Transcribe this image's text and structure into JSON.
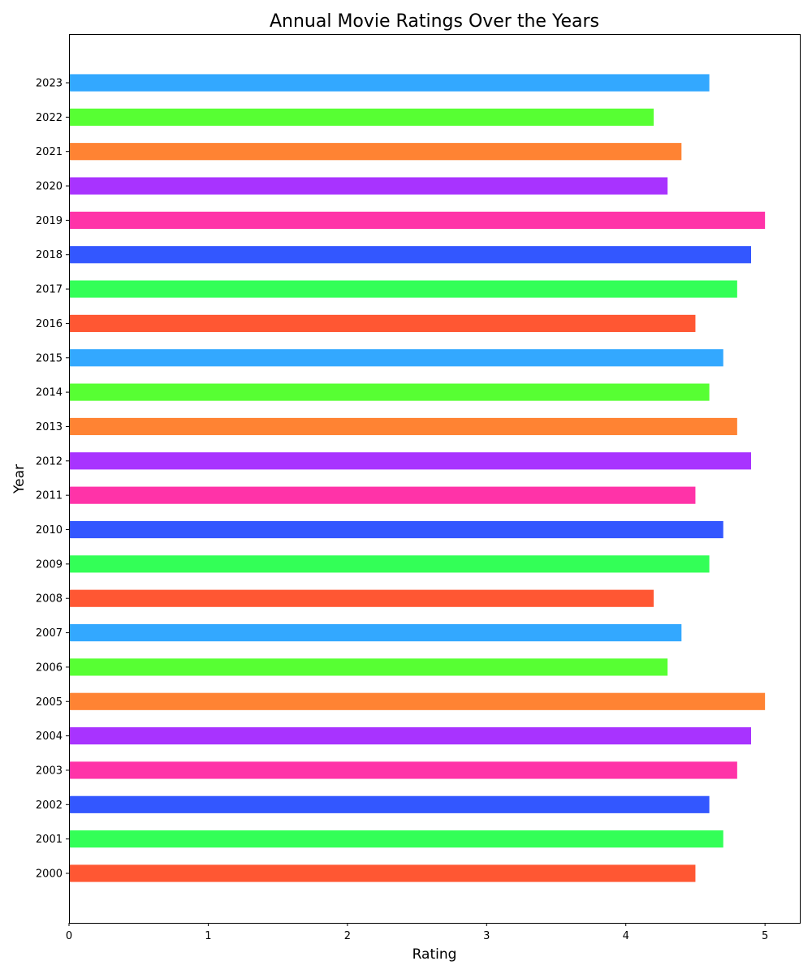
{
  "chart_data": {
    "type": "bar",
    "orientation": "horizontal",
    "title": "Annual Movie Ratings Over the Years",
    "xlabel": "Rating",
    "ylabel": "Year",
    "xlim": [
      0,
      5.25
    ],
    "xticks": [
      0,
      1,
      2,
      3,
      4,
      5
    ],
    "grid": false,
    "legend": "none",
    "categories": [
      "2000",
      "2001",
      "2002",
      "2003",
      "2004",
      "2005",
      "2006",
      "2007",
      "2008",
      "2009",
      "2010",
      "2011",
      "2012",
      "2013",
      "2014",
      "2015",
      "2016",
      "2017",
      "2018",
      "2019",
      "2020",
      "2021",
      "2022",
      "2023"
    ],
    "values": [
      4.5,
      4.7,
      4.6,
      4.8,
      4.9,
      5.0,
      4.3,
      4.4,
      4.2,
      4.6,
      4.7,
      4.5,
      4.9,
      4.8,
      4.6,
      4.7,
      4.5,
      4.8,
      4.9,
      5.0,
      4.3,
      4.4,
      4.2,
      4.6
    ],
    "colors": [
      "#ff5733",
      "#33ff57",
      "#3357ff",
      "#ff33a8",
      "#a833ff",
      "#ff8333",
      "#57ff33",
      "#33a8ff",
      "#ff5733",
      "#33ff57",
      "#3357ff",
      "#ff33a8",
      "#a833ff",
      "#ff8333",
      "#57ff33",
      "#33a8ff",
      "#ff5733",
      "#33ff57",
      "#3357ff",
      "#ff33a8",
      "#a833ff",
      "#ff8333",
      "#57ff33",
      "#33a8ff"
    ]
  }
}
